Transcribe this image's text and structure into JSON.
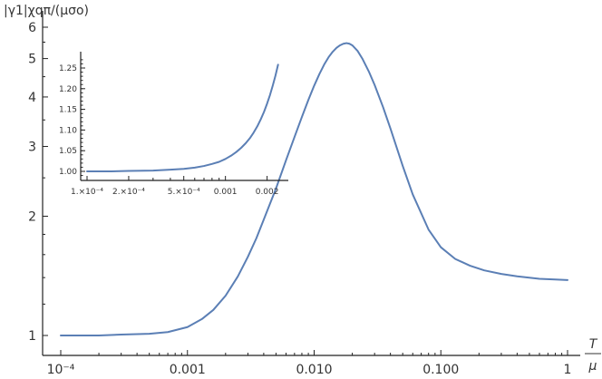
{
  "chart_data": [
    {
      "type": "line",
      "title": "",
      "xlabel_num": "T",
      "xlabel_den": "μ",
      "ylabel": "|γ1|χqπ/(μσo)",
      "xscale": "log",
      "yscale": "log",
      "xlim": [
        0.0001,
        1
      ],
      "ylim": [
        1,
        6
      ],
      "x_ticks": [
        {
          "value": 0.0001,
          "label": "10⁻⁴"
        },
        {
          "value": 0.001,
          "label": "0.001"
        },
        {
          "value": 0.01,
          "label": "0.010"
        },
        {
          "value": 0.1,
          "label": "0.100"
        },
        {
          "value": 1,
          "label": "1"
        }
      ],
      "y_ticks": [
        {
          "value": 1,
          "label": "1"
        },
        {
          "value": 2,
          "label": "2"
        },
        {
          "value": 3,
          "label": "3"
        },
        {
          "value": 4,
          "label": "4"
        },
        {
          "value": 5,
          "label": "5"
        },
        {
          "value": 6,
          "label": "6"
        }
      ],
      "series": [
        {
          "color": "#5b7fb5",
          "x": [
            0.0001,
            0.0002,
            0.0003,
            0.0005,
            0.0007,
            0.001,
            0.0013,
            0.0016,
            0.002,
            0.0025,
            0.003,
            0.0035,
            0.004,
            0.005,
            0.006,
            0.007,
            0.008,
            0.009,
            0.01,
            0.011,
            0.012,
            0.013,
            0.014,
            0.015,
            0.016,
            0.017,
            0.018,
            0.019,
            0.02,
            0.022,
            0.024,
            0.027,
            0.03,
            0.035,
            0.04,
            0.05,
            0.06,
            0.08,
            0.1,
            0.13,
            0.17,
            0.22,
            0.3,
            0.4,
            0.6,
            0.8,
            1.0
          ],
          "y": [
            1.0,
            1.0,
            1.005,
            1.01,
            1.02,
            1.05,
            1.1,
            1.16,
            1.26,
            1.41,
            1.58,
            1.76,
            1.96,
            2.35,
            2.77,
            3.17,
            3.56,
            3.93,
            4.27,
            4.57,
            4.83,
            5.04,
            5.2,
            5.32,
            5.4,
            5.45,
            5.47,
            5.45,
            5.4,
            5.23,
            5.0,
            4.64,
            4.29,
            3.77,
            3.33,
            2.68,
            2.27,
            1.85,
            1.67,
            1.56,
            1.5,
            1.46,
            1.43,
            1.41,
            1.39,
            1.385,
            1.38
          ]
        }
      ]
    },
    {
      "type": "line",
      "title": "",
      "xlabel": "",
      "ylabel": "",
      "xscale": "log",
      "xlim": [
        0.0001,
        0.0026
      ],
      "ylim": [
        0.98,
        1.28
      ],
      "x_ticks": [
        {
          "value": 0.0001,
          "label": "1.×10⁻⁴"
        },
        {
          "value": 0.0002,
          "label": "2.×10⁻⁴"
        },
        {
          "value": 0.0005,
          "label": "5.×10⁻⁴"
        },
        {
          "value": 0.001,
          "label": "0.001"
        },
        {
          "value": 0.002,
          "label": "0.002"
        }
      ],
      "y_ticks": [
        {
          "value": 1.0,
          "label": "1.00"
        },
        {
          "value": 1.05,
          "label": "1.05"
        },
        {
          "value": 1.1,
          "label": "1.10"
        },
        {
          "value": 1.15,
          "label": "1.15"
        },
        {
          "value": 1.2,
          "label": "1.20"
        },
        {
          "value": 1.25,
          "label": "1.25"
        }
      ],
      "series": [
        {
          "color": "#5b7fb5",
          "x": [
            0.0001,
            0.00015,
            0.0002,
            0.0003,
            0.0004,
            0.0005,
            0.0006,
            0.0007,
            0.0008,
            0.0009,
            0.001,
            0.0011,
            0.0012,
            0.0013,
            0.0014,
            0.0015,
            0.0016,
            0.0017,
            0.0018,
            0.0019,
            0.002,
            0.0021,
            0.0022,
            0.0023,
            0.0024
          ],
          "y": [
            1.0,
            1.0,
            1.001,
            1.002,
            1.004,
            1.006,
            1.009,
            1.013,
            1.018,
            1.023,
            1.03,
            1.038,
            1.047,
            1.057,
            1.068,
            1.08,
            1.094,
            1.109,
            1.126,
            1.144,
            1.164,
            1.185,
            1.208,
            1.232,
            1.258
          ]
        }
      ]
    }
  ]
}
